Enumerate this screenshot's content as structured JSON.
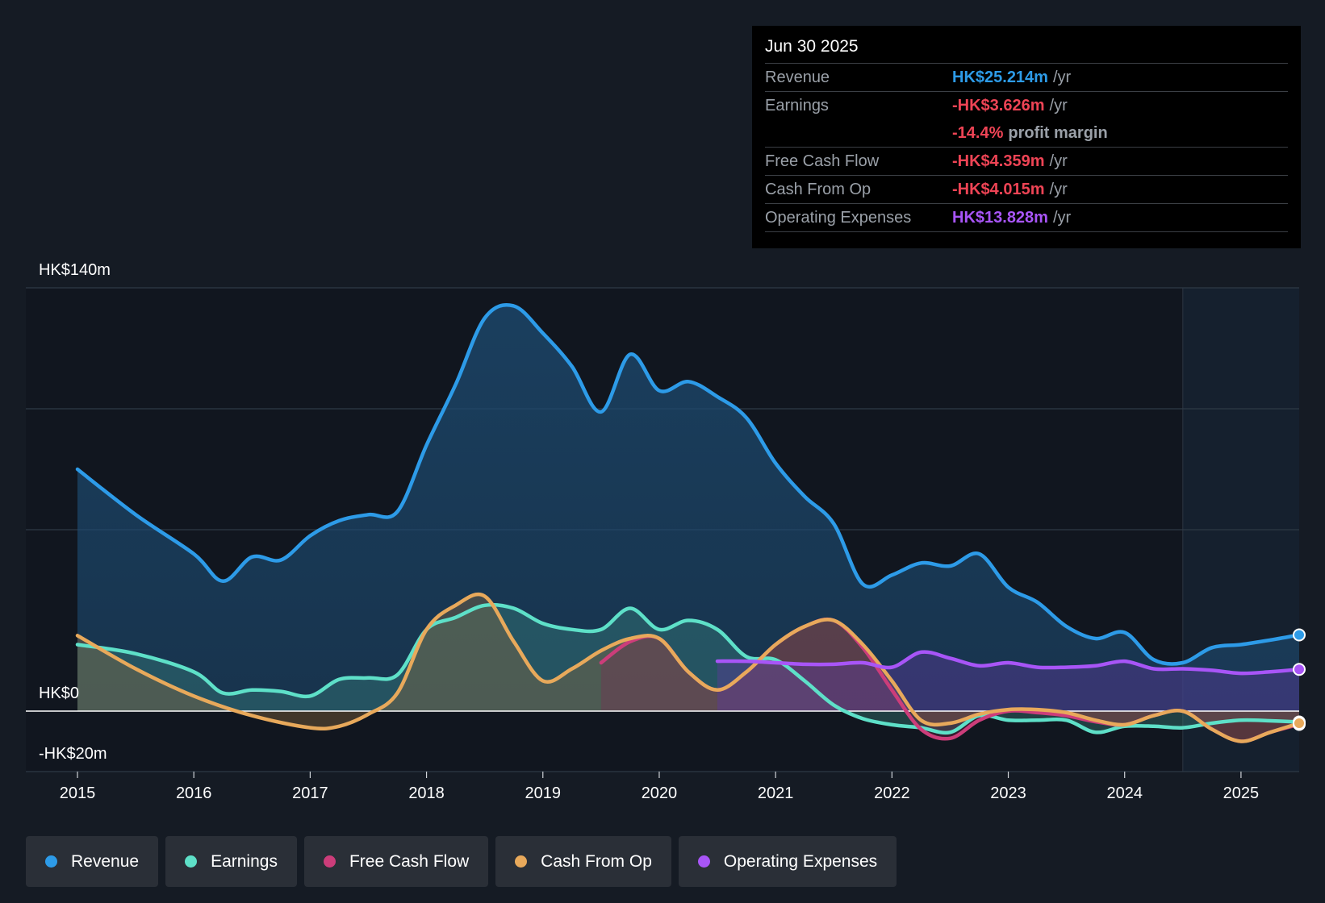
{
  "tooltip": {
    "date": "Jun 30 2025",
    "rows": {
      "revenue": {
        "label": "Revenue",
        "value": "HK$25.214m",
        "unit": "/yr"
      },
      "earnings": {
        "label": "Earnings",
        "value": "-HK$3.626m",
        "unit": "/yr"
      },
      "margin": {
        "value": "-14.4%",
        "unit": "profit margin"
      },
      "fcf": {
        "label": "Free Cash Flow",
        "value": "-HK$4.359m",
        "unit": "/yr"
      },
      "cfo": {
        "label": "Cash From Op",
        "value": "-HK$4.015m",
        "unit": "/yr"
      },
      "opex": {
        "label": "Operating Expenses",
        "value": "HK$13.828m",
        "unit": "/yr"
      }
    }
  },
  "legend": [
    {
      "label": "Revenue",
      "color": "#2d9be8"
    },
    {
      "label": "Earnings",
      "color": "#5ee0c8"
    },
    {
      "label": "Free Cash Flow",
      "color": "#cc3d7a"
    },
    {
      "label": "Cash From Op",
      "color": "#e8a95b"
    },
    {
      "label": "Operating Expenses",
      "color": "#a855f7"
    }
  ],
  "chart_data": {
    "type": "line",
    "title": "",
    "xlabel": "",
    "ylabel": "",
    "ylim": [
      -20,
      140
    ],
    "y_tick_labels": [
      {
        "value": 140,
        "label": "HK$140m"
      },
      {
        "value": 0,
        "label": "HK$0"
      },
      {
        "value": -20,
        "label": "-HK$20m"
      }
    ],
    "x_ticks": [
      2015,
      2016,
      2017,
      2018,
      2019,
      2020,
      2021,
      2022,
      2023,
      2024,
      2025
    ],
    "x_range": [
      2014.55,
      2025.5
    ],
    "forecast_start": 2024.5,
    "series": [
      {
        "name": "Revenue",
        "color": "#2d9be8",
        "points": [
          [
            2015,
            80
          ],
          [
            2015.5,
            65
          ],
          [
            2016,
            52
          ],
          [
            2016.25,
            43
          ],
          [
            2016.5,
            51
          ],
          [
            2016.75,
            50
          ],
          [
            2017,
            58
          ],
          [
            2017.25,
            63
          ],
          [
            2017.5,
            65
          ],
          [
            2017.75,
            66
          ],
          [
            2018,
            88
          ],
          [
            2018.25,
            108
          ],
          [
            2018.5,
            130
          ],
          [
            2018.75,
            134
          ],
          [
            2019,
            125
          ],
          [
            2019.25,
            114
          ],
          [
            2019.5,
            99
          ],
          [
            2019.75,
            118
          ],
          [
            2020,
            106
          ],
          [
            2020.25,
            109
          ],
          [
            2020.5,
            104
          ],
          [
            2020.75,
            97
          ],
          [
            2021,
            82
          ],
          [
            2021.25,
            71
          ],
          [
            2021.5,
            62
          ],
          [
            2021.75,
            42
          ],
          [
            2022,
            45
          ],
          [
            2022.25,
            49
          ],
          [
            2022.5,
            48
          ],
          [
            2022.75,
            52
          ],
          [
            2023,
            41
          ],
          [
            2023.25,
            36
          ],
          [
            2023.5,
            28
          ],
          [
            2023.75,
            24
          ],
          [
            2024,
            26
          ],
          [
            2024.25,
            17
          ],
          [
            2024.5,
            16
          ],
          [
            2024.75,
            21
          ],
          [
            2025,
            22
          ],
          [
            2025.25,
            23.5
          ],
          [
            2025.5,
            25.2
          ]
        ]
      },
      {
        "name": "Earnings",
        "color": "#5ee0c8",
        "points": [
          [
            2015,
            22
          ],
          [
            2015.5,
            19
          ],
          [
            2016,
            13
          ],
          [
            2016.25,
            6
          ],
          [
            2016.5,
            7
          ],
          [
            2016.75,
            6.5
          ],
          [
            2017,
            5
          ],
          [
            2017.25,
            10.5
          ],
          [
            2017.5,
            11
          ],
          [
            2017.75,
            12
          ],
          [
            2018,
            27
          ],
          [
            2018.25,
            31
          ],
          [
            2018.5,
            35
          ],
          [
            2018.75,
            34
          ],
          [
            2019,
            29
          ],
          [
            2019.25,
            27
          ],
          [
            2019.5,
            27
          ],
          [
            2019.75,
            34
          ],
          [
            2020,
            27
          ],
          [
            2020.25,
            30
          ],
          [
            2020.5,
            27
          ],
          [
            2020.75,
            18
          ],
          [
            2021,
            17
          ],
          [
            2021.25,
            10
          ],
          [
            2021.5,
            2
          ],
          [
            2021.75,
            -2.5
          ],
          [
            2022,
            -4.5
          ],
          [
            2022.25,
            -5.5
          ],
          [
            2022.5,
            -7
          ],
          [
            2022.75,
            -1.5
          ],
          [
            2023,
            -3
          ],
          [
            2023.25,
            -3
          ],
          [
            2023.5,
            -3
          ],
          [
            2023.75,
            -7
          ],
          [
            2024,
            -5
          ],
          [
            2024.25,
            -5
          ],
          [
            2024.5,
            -5.5
          ],
          [
            2024.75,
            -4
          ],
          [
            2025,
            -3
          ],
          [
            2025.25,
            -3.2
          ],
          [
            2025.5,
            -3.6
          ]
        ]
      },
      {
        "name": "Free Cash Flow",
        "color": "#cc3d7a",
        "points": [
          [
            2019.5,
            16
          ],
          [
            2019.75,
            23
          ],
          [
            2020,
            24
          ],
          [
            2020.25,
            13
          ],
          [
            2020.5,
            7
          ],
          [
            2020.75,
            13
          ],
          [
            2021,
            22
          ],
          [
            2021.25,
            28
          ],
          [
            2021.5,
            30
          ],
          [
            2021.75,
            21
          ],
          [
            2022,
            7
          ],
          [
            2022.25,
            -6
          ],
          [
            2022.5,
            -9
          ],
          [
            2022.75,
            -3
          ],
          [
            2023,
            0
          ],
          [
            2023.25,
            -0.5
          ],
          [
            2023.5,
            -1.5
          ],
          [
            2023.75,
            -3.5
          ],
          [
            2024,
            -4.5
          ],
          [
            2024.25,
            -1.5
          ],
          [
            2024.5,
            0
          ],
          [
            2024.75,
            -6
          ],
          [
            2025,
            -10
          ],
          [
            2025.25,
            -7
          ],
          [
            2025.5,
            -4.4
          ]
        ]
      },
      {
        "name": "Cash From Op",
        "color": "#e8a95b",
        "points": [
          [
            2015,
            25
          ],
          [
            2015.5,
            14
          ],
          [
            2016,
            5
          ],
          [
            2016.5,
            -1.5
          ],
          [
            2017,
            -5.5
          ],
          [
            2017.25,
            -5
          ],
          [
            2017.5,
            -1
          ],
          [
            2017.75,
            6
          ],
          [
            2018,
            27
          ],
          [
            2018.25,
            35
          ],
          [
            2018.5,
            38
          ],
          [
            2018.75,
            23
          ],
          [
            2019,
            10
          ],
          [
            2019.25,
            14
          ],
          [
            2019.5,
            20
          ],
          [
            2019.75,
            24
          ],
          [
            2020,
            24
          ],
          [
            2020.25,
            13
          ],
          [
            2020.5,
            7
          ],
          [
            2020.75,
            13
          ],
          [
            2021,
            22
          ],
          [
            2021.25,
            28
          ],
          [
            2021.5,
            30
          ],
          [
            2021.75,
            22
          ],
          [
            2022,
            10
          ],
          [
            2022.25,
            -3
          ],
          [
            2022.5,
            -4
          ],
          [
            2022.75,
            -1
          ],
          [
            2023,
            0.5
          ],
          [
            2023.25,
            0.5
          ],
          [
            2023.5,
            -0.5
          ],
          [
            2023.75,
            -3
          ],
          [
            2024,
            -4.5
          ],
          [
            2024.25,
            -1.5
          ],
          [
            2024.5,
            0
          ],
          [
            2024.75,
            -6
          ],
          [
            2025,
            -10
          ],
          [
            2025.25,
            -7
          ],
          [
            2025.5,
            -4.0
          ]
        ]
      },
      {
        "name": "Operating Expenses",
        "color": "#a855f7",
        "points": [
          [
            2020.5,
            16.5
          ],
          [
            2020.75,
            16.5
          ],
          [
            2021,
            16
          ],
          [
            2021.25,
            15.5
          ],
          [
            2021.5,
            15.5
          ],
          [
            2021.75,
            16
          ],
          [
            2022,
            14.5
          ],
          [
            2022.25,
            19.5
          ],
          [
            2022.5,
            17.5
          ],
          [
            2022.75,
            15
          ],
          [
            2023,
            16
          ],
          [
            2023.25,
            14.5
          ],
          [
            2023.5,
            14.5
          ],
          [
            2023.75,
            15
          ],
          [
            2024,
            16.5
          ],
          [
            2024.25,
            14
          ],
          [
            2024.5,
            14
          ],
          [
            2024.75,
            13.5
          ],
          [
            2025,
            12.5
          ],
          [
            2025.25,
            13
          ],
          [
            2025.5,
            13.8
          ]
        ]
      }
    ]
  }
}
